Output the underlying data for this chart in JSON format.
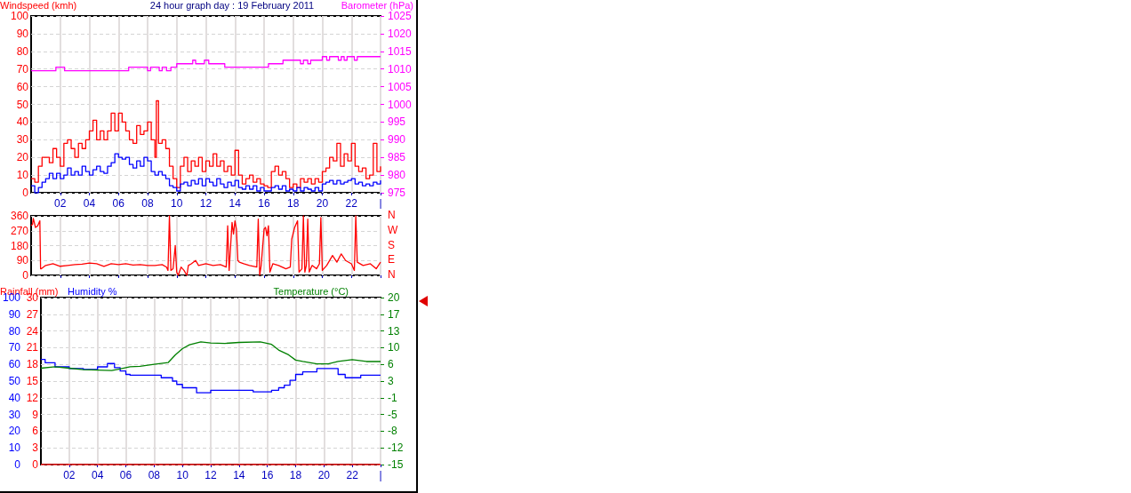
{
  "chart_data": [
    {
      "type": "step",
      "title": "24 hour graph day : 19 February 2011",
      "ylabel": "Windspeed (kmh)",
      "y2label": "Barometer (hPa)",
      "x": [
        0,
        0.25,
        0.5,
        0.75,
        1,
        1.25,
        1.5,
        1.75,
        2,
        2.25,
        2.5,
        2.75,
        3,
        3.25,
        3.5,
        3.75,
        4,
        4.25,
        4.5,
        4.75,
        5,
        5.25,
        5.5,
        5.75,
        6,
        6.25,
        6.5,
        6.75,
        7,
        7.25,
        7.5,
        7.75,
        8,
        8.25,
        8.5,
        8.6,
        8.75,
        9,
        9.25,
        9.5,
        9.75,
        10,
        10.25,
        10.5,
        10.75,
        11,
        11.25,
        11.5,
        11.75,
        12,
        12.25,
        12.5,
        12.75,
        13,
        13.25,
        13.5,
        13.75,
        14,
        14.25,
        14.5,
        14.75,
        15,
        15.25,
        15.5,
        15.75,
        16,
        16.25,
        16.5,
        16.75,
        17,
        17.25,
        17.5,
        17.75,
        18,
        18.25,
        18.5,
        18.75,
        19,
        19.25,
        19.5,
        19.75,
        20,
        20.25,
        20.5,
        20.75,
        21,
        21.25,
        21.5,
        21.75,
        22,
        22.25,
        22.5,
        22.75,
        23,
        23.25,
        23.5,
        23.75,
        24
      ],
      "series": [
        {
          "color": "#ff0000",
          "values": [
            8,
            6,
            15,
            20,
            20,
            17,
            25,
            20,
            15,
            28,
            30,
            25,
            20,
            28,
            25,
            30,
            35,
            41,
            30,
            35,
            30,
            35,
            45,
            35,
            45,
            40,
            35,
            30,
            28,
            38,
            33,
            35,
            40,
            30,
            20,
            52,
            28,
            30,
            25,
            15,
            8,
            3,
            15,
            20,
            12,
            18,
            15,
            20,
            12,
            18,
            15,
            22,
            15,
            18,
            12,
            15,
            10,
            24,
            10,
            5,
            8,
            10,
            6,
            8,
            5,
            4,
            3,
            12,
            15,
            10,
            12,
            8,
            3,
            5,
            3,
            8,
            6,
            8,
            5,
            8,
            6,
            12,
            14,
            20,
            18,
            28,
            15,
            22,
            18,
            28,
            15,
            12,
            14,
            8,
            10,
            28,
            12,
            15
          ]
        },
        {
          "color": "#0000ff",
          "values": [
            4,
            0,
            3,
            6,
            8,
            11,
            8,
            11,
            8,
            10,
            14,
            10,
            12,
            10,
            15,
            12,
            10,
            13,
            15,
            12,
            11,
            15,
            17,
            22,
            20,
            19,
            20,
            16,
            14,
            18,
            15,
            20,
            18,
            12,
            10,
            10,
            12,
            10,
            8,
            4,
            3,
            1,
            5,
            6,
            4,
            7,
            5,
            8,
            4,
            8,
            6,
            4,
            8,
            5,
            3,
            6,
            4,
            7,
            3,
            2,
            4,
            2,
            4,
            1,
            3,
            1,
            1,
            3,
            4,
            2,
            4,
            1,
            2,
            1,
            3,
            1,
            3,
            2,
            1,
            3,
            1,
            5,
            6,
            7,
            5,
            7,
            5,
            6,
            7,
            8,
            5,
            6,
            4,
            5,
            4,
            6,
            5,
            7
          ]
        },
        {
          "color": "#ff00ff",
          "axis": "y2",
          "x": [
            0,
            1.7,
            2.3,
            6.7,
            8.0,
            8.2,
            8.8,
            9.0,
            9.3,
            9.6,
            10.0,
            11.1,
            11.3,
            11.9,
            12.2,
            13.3,
            16.3,
            17.3,
            18.5,
            18.7,
            19.0,
            19.2,
            20.0,
            20.3,
            20.5,
            21.1,
            21.3,
            21.5,
            21.7,
            22.2,
            22.4,
            24
          ],
          "values": [
            1009.5,
            1010.5,
            1009.5,
            1010.5,
            1009.5,
            1010.5,
            1009.5,
            1010.5,
            1009.5,
            1010.5,
            1011.5,
            1012.5,
            1011.5,
            1012.5,
            1011.5,
            1010.5,
            1011.5,
            1012.5,
            1011.5,
            1012.5,
            1011.5,
            1012.5,
            1013.5,
            1012.5,
            1013.5,
            1012.5,
            1013.5,
            1012.5,
            1013.5,
            1012.5,
            1013.5,
            1013.5
          ]
        }
      ],
      "xlim": [
        0,
        24
      ],
      "xticks": [
        {
          "value": 2,
          "label": "02"
        },
        {
          "value": 4,
          "label": "04"
        },
        {
          "value": 6,
          "label": "06"
        },
        {
          "value": 8,
          "label": "08"
        },
        {
          "value": 10,
          "label": "10"
        },
        {
          "value": 12,
          "label": "12"
        },
        {
          "value": 14,
          "label": "14"
        },
        {
          "value": 16,
          "label": "16"
        },
        {
          "value": 18,
          "label": "18"
        },
        {
          "value": 20,
          "label": "20"
        },
        {
          "value": 22,
          "label": "22"
        },
        {
          "value": 24,
          "label": "|"
        }
      ],
      "ylim": [
        0,
        100
      ],
      "yticks": [
        0,
        10,
        20,
        30,
        40,
        50,
        60,
        70,
        80,
        90,
        100
      ],
      "y2lim": [
        975,
        1025
      ],
      "y2ticks": [
        975,
        980,
        985,
        990,
        995,
        1000,
        1005,
        1010,
        1015,
        1020,
        1025
      ],
      "grid": true,
      "marker": "none"
    },
    {
      "type": "line",
      "x": [
        0,
        0.1,
        0.15,
        0.3,
        0.45,
        0.6,
        0.65,
        0.7,
        1,
        1.5,
        2,
        2.5,
        3,
        3.5,
        4,
        4.5,
        5,
        5.5,
        6,
        6.5,
        7,
        7.5,
        8,
        8.5,
        9,
        9.3,
        9.4,
        9.5,
        9.6,
        9.75,
        9.9,
        10,
        10.1,
        10.3,
        10.5,
        10.7,
        10.8,
        11,
        11.3,
        11.5,
        12,
        12.5,
        13,
        13.4,
        13.5,
        13.6,
        13.8,
        13.9,
        14.0,
        14.1,
        14.2,
        14.3,
        14.6,
        15,
        15.5,
        15.6,
        15.7,
        15.8,
        16.0,
        16.1,
        16.2,
        16.3,
        16.4,
        16.6,
        17,
        17.5,
        17.8,
        17.9,
        18.1,
        18.3,
        18.4,
        18.6,
        18.7,
        18.8,
        18.9,
        19.0,
        19.1,
        19.3,
        19.6,
        19.8,
        19.9,
        20.0,
        20.3,
        20.7,
        21,
        21.3,
        21.6,
        22,
        22.2,
        22.3,
        22.4,
        22.8,
        23.3,
        23.7,
        24
      ],
      "series": [
        {
          "color": "#ff0000",
          "values": [
            300,
            310,
            345,
            290,
            300,
            330,
            40,
            40,
            60,
            70,
            55,
            60,
            65,
            68,
            75,
            70,
            55,
            70,
            65,
            70,
            62,
            65,
            60,
            60,
            65,
            50,
            30,
            360,
            30,
            40,
            180,
            20,
            0,
            50,
            30,
            0,
            60,
            70,
            90,
            60,
            70,
            60,
            65,
            50,
            300,
            30,
            320,
            250,
            330,
            280,
            90,
            80,
            70,
            60,
            50,
            340,
            0,
            60,
            280,
            290,
            240,
            300,
            20,
            70,
            60,
            40,
            50,
            220,
            290,
            330,
            20,
            40,
            360,
            20,
            60,
            340,
            20,
            60,
            40,
            70,
            350,
            30,
            60,
            120,
            80,
            130,
            90,
            70,
            30,
            360,
            80,
            60,
            70,
            40,
            80
          ]
        }
      ],
      "xlim": [
        0,
        24
      ],
      "xticks": [
        2,
        4,
        6,
        8,
        10,
        12,
        14,
        16,
        18,
        20,
        22,
        24
      ],
      "ylim": [
        0,
        360
      ],
      "yticks": [
        0,
        90,
        180,
        270,
        360
      ],
      "annotations": [
        "N",
        "W",
        "S",
        "E",
        "N"
      ],
      "tick_labels": "y",
      "grid": true,
      "marker": "none"
    },
    {
      "type": "step",
      "ylabel": "Rainfall (mm)",
      "y3label": "Humidity %",
      "y2label": "Temperature (°C)",
      "series": [
        {
          "color": "#ff0000",
          "x": [
            0,
            24
          ],
          "values": [
            0,
            0
          ]
        },
        {
          "color": "#0000ff",
          "axis": "y3",
          "x": [
            0,
            0.3,
            1,
            2,
            3,
            3.5,
            4,
            4.7,
            5.2,
            5.6,
            6,
            6.3,
            8.5,
            9.3,
            9.6,
            10,
            10.5,
            11,
            12,
            15,
            16.3,
            16.8,
            17.2,
            17.6,
            18,
            18.5,
            19.5,
            20.5,
            21,
            21.5,
            22.6,
            24
          ],
          "values": [
            63,
            61,
            58.5,
            57.5,
            57,
            57,
            58.5,
            60.5,
            58,
            56,
            54,
            53.5,
            52,
            50,
            48,
            46,
            46,
            43,
            44.5,
            43.5,
            44.5,
            46,
            47.5,
            50.5,
            54,
            55.5,
            57.5,
            57.5,
            54,
            52,
            53.5,
            53.5
          ]
        },
        {
          "color": "#008000",
          "axis": "y2",
          "type": "line",
          "x": [
            0,
            1,
            2,
            3,
            5,
            5.5,
            6.3,
            7,
            8,
            9,
            9.5,
            10,
            10.5,
            11.3,
            12,
            13,
            14,
            15.5,
            16.3,
            16.8,
            17.5,
            18,
            18.5,
            19.5,
            20.3,
            21,
            22,
            23,
            24
          ],
          "values": [
            5.2,
            5.5,
            5.2,
            4.9,
            4.7,
            5.0,
            5.5,
            5.6,
            6.0,
            6.4,
            8.0,
            9.3,
            10.1,
            10.7,
            10.5,
            10.4,
            10.6,
            10.7,
            10.2,
            9.0,
            8.0,
            6.9,
            6.6,
            6.1,
            6.1,
            6.6,
            7.0,
            6.6,
            6.6
          ]
        }
      ],
      "xlim": [
        0,
        24
      ],
      "xticks": [
        {
          "value": 2,
          "label": "02"
        },
        {
          "value": 4,
          "label": "04"
        },
        {
          "value": 6,
          "label": "06"
        },
        {
          "value": 8,
          "label": "08"
        },
        {
          "value": 10,
          "label": "10"
        },
        {
          "value": 12,
          "label": "12"
        },
        {
          "value": 14,
          "label": "14"
        },
        {
          "value": 16,
          "label": "16"
        },
        {
          "value": 18,
          "label": "18"
        },
        {
          "value": 20,
          "label": "20"
        },
        {
          "value": 22,
          "label": "22"
        },
        {
          "value": 24,
          "label": "|"
        }
      ],
      "ylim": [
        0,
        30
      ],
      "yticks": [
        0,
        3,
        6,
        9,
        12,
        15,
        18,
        21,
        24,
        27,
        30
      ],
      "y3lim": [
        0,
        100
      ],
      "y3ticks": [
        0,
        10,
        20,
        30,
        40,
        50,
        60,
        70,
        80,
        90,
        100
      ],
      "y2lim": [
        -15,
        20
      ],
      "y2ticks": [
        -15,
        {
          "value": -11.5,
          "label": "-12"
        },
        -8,
        {
          "value": -4.5,
          "label": "-5"
        },
        -1,
        {
          "value": 2.5,
          "label": "3"
        },
        6,
        {
          "value": 9.5,
          "label": "10"
        },
        13,
        {
          "value": 16.5,
          "label": "17"
        },
        20
      ],
      "grid": true,
      "marker": "none"
    }
  ]
}
